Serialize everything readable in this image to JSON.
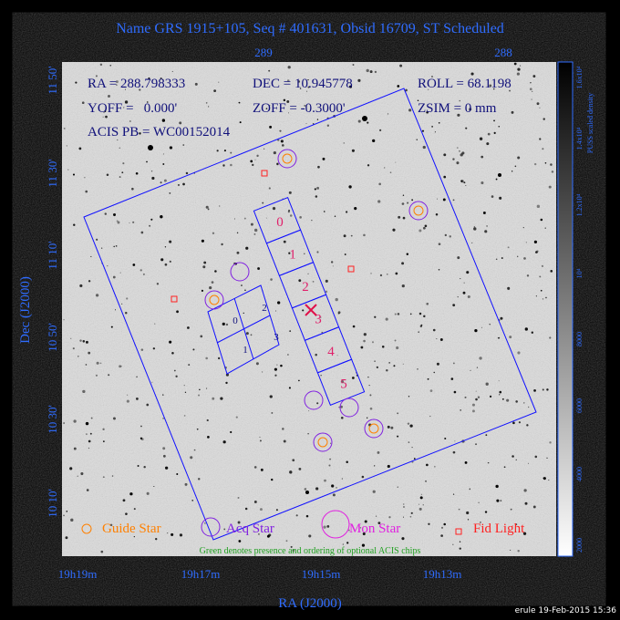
{
  "title": "Name GRS 1915+105, Seq # 401631, Obsid 16709, ST Scheduled",
  "top_axis": {
    "ticks": [
      "289",
      "288"
    ]
  },
  "left_axis": {
    "label": "Dec (J2000)",
    "ticks": [
      "11 50'",
      "11 30'",
      "11 10'",
      "10 50'",
      "10 30'",
      "10 10'"
    ]
  },
  "bottom_axis": {
    "label": "RA (J2000)",
    "ticks": [
      "19h19m",
      "19h17m",
      "19h15m",
      "19h13m"
    ]
  },
  "colorbar": {
    "label": "PUSS scaled density",
    "ticks": [
      "1.6x10⁴",
      "1.4x10⁴",
      "1.2x10⁴",
      "10⁴",
      "8000",
      "6000",
      "4000",
      "2000"
    ]
  },
  "info": [
    "RA = 288.798333",
    "DEC = 10.945778",
    "ROLL = 68.1198",
    "YOFF =   0.000'",
    "ZOFF = -0.3000'",
    "ZSIM = 0 mm",
    "ACIS PB = WC00152014"
  ],
  "acis_s_chips": [
    "0",
    "1",
    "2",
    "3",
    "4",
    "5"
  ],
  "acis_i_chips": [
    "0",
    "2",
    "1",
    "3"
  ],
  "legend": [
    "Guide Star",
    "Acq Star",
    "Mon Star",
    "Fid Light"
  ],
  "note": "Green denotes presence and ordering of optional ACIS chips",
  "footer": "erule 19-Feb-2015 15:36"
}
